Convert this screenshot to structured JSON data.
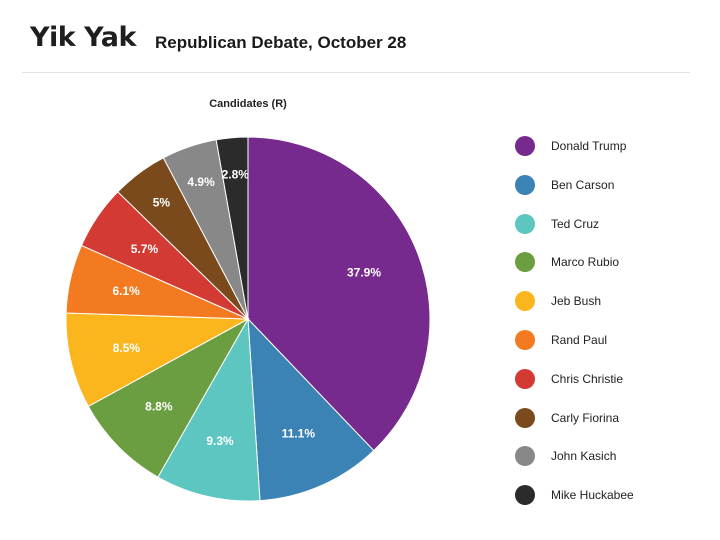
{
  "header": {
    "logo_text": "Yik Yak",
    "title": "Republican Debate, October 28"
  },
  "chart_data": {
    "type": "pie",
    "title": "Candidates (R)",
    "legend_position": "right",
    "slices": [
      {
        "name": "Donald Trump",
        "value": 37.9,
        "label": "37.9%",
        "color": "#772a8e"
      },
      {
        "name": "Ben Carson",
        "value": 11.1,
        "label": "11.1%",
        "color": "#3b82b5"
      },
      {
        "name": "Ted Cruz",
        "value": 9.3,
        "label": "9.3%",
        "color": "#5ec6c0"
      },
      {
        "name": "Marco Rubio",
        "value": 8.8,
        "label": "8.8%",
        "color": "#6a9e40"
      },
      {
        "name": "Jeb Bush",
        "value": 8.5,
        "label": "8.5%",
        "color": "#fbb61d"
      },
      {
        "name": "Rand Paul",
        "value": 6.1,
        "label": "6.1%",
        "color": "#f47a22"
      },
      {
        "name": "Chris Christie",
        "value": 5.7,
        "label": "5.7%",
        "color": "#d23a33"
      },
      {
        "name": "Carly Fiorina",
        "value": 5.0,
        "label": "5%",
        "color": "#7a4a1d"
      },
      {
        "name": "John Kasich",
        "value": 4.9,
        "label": "4.9%",
        "color": "#888888"
      },
      {
        "name": "Mike Huckabee",
        "value": 2.8,
        "label": "2.8%",
        "color": "#2b2b2b"
      }
    ]
  }
}
